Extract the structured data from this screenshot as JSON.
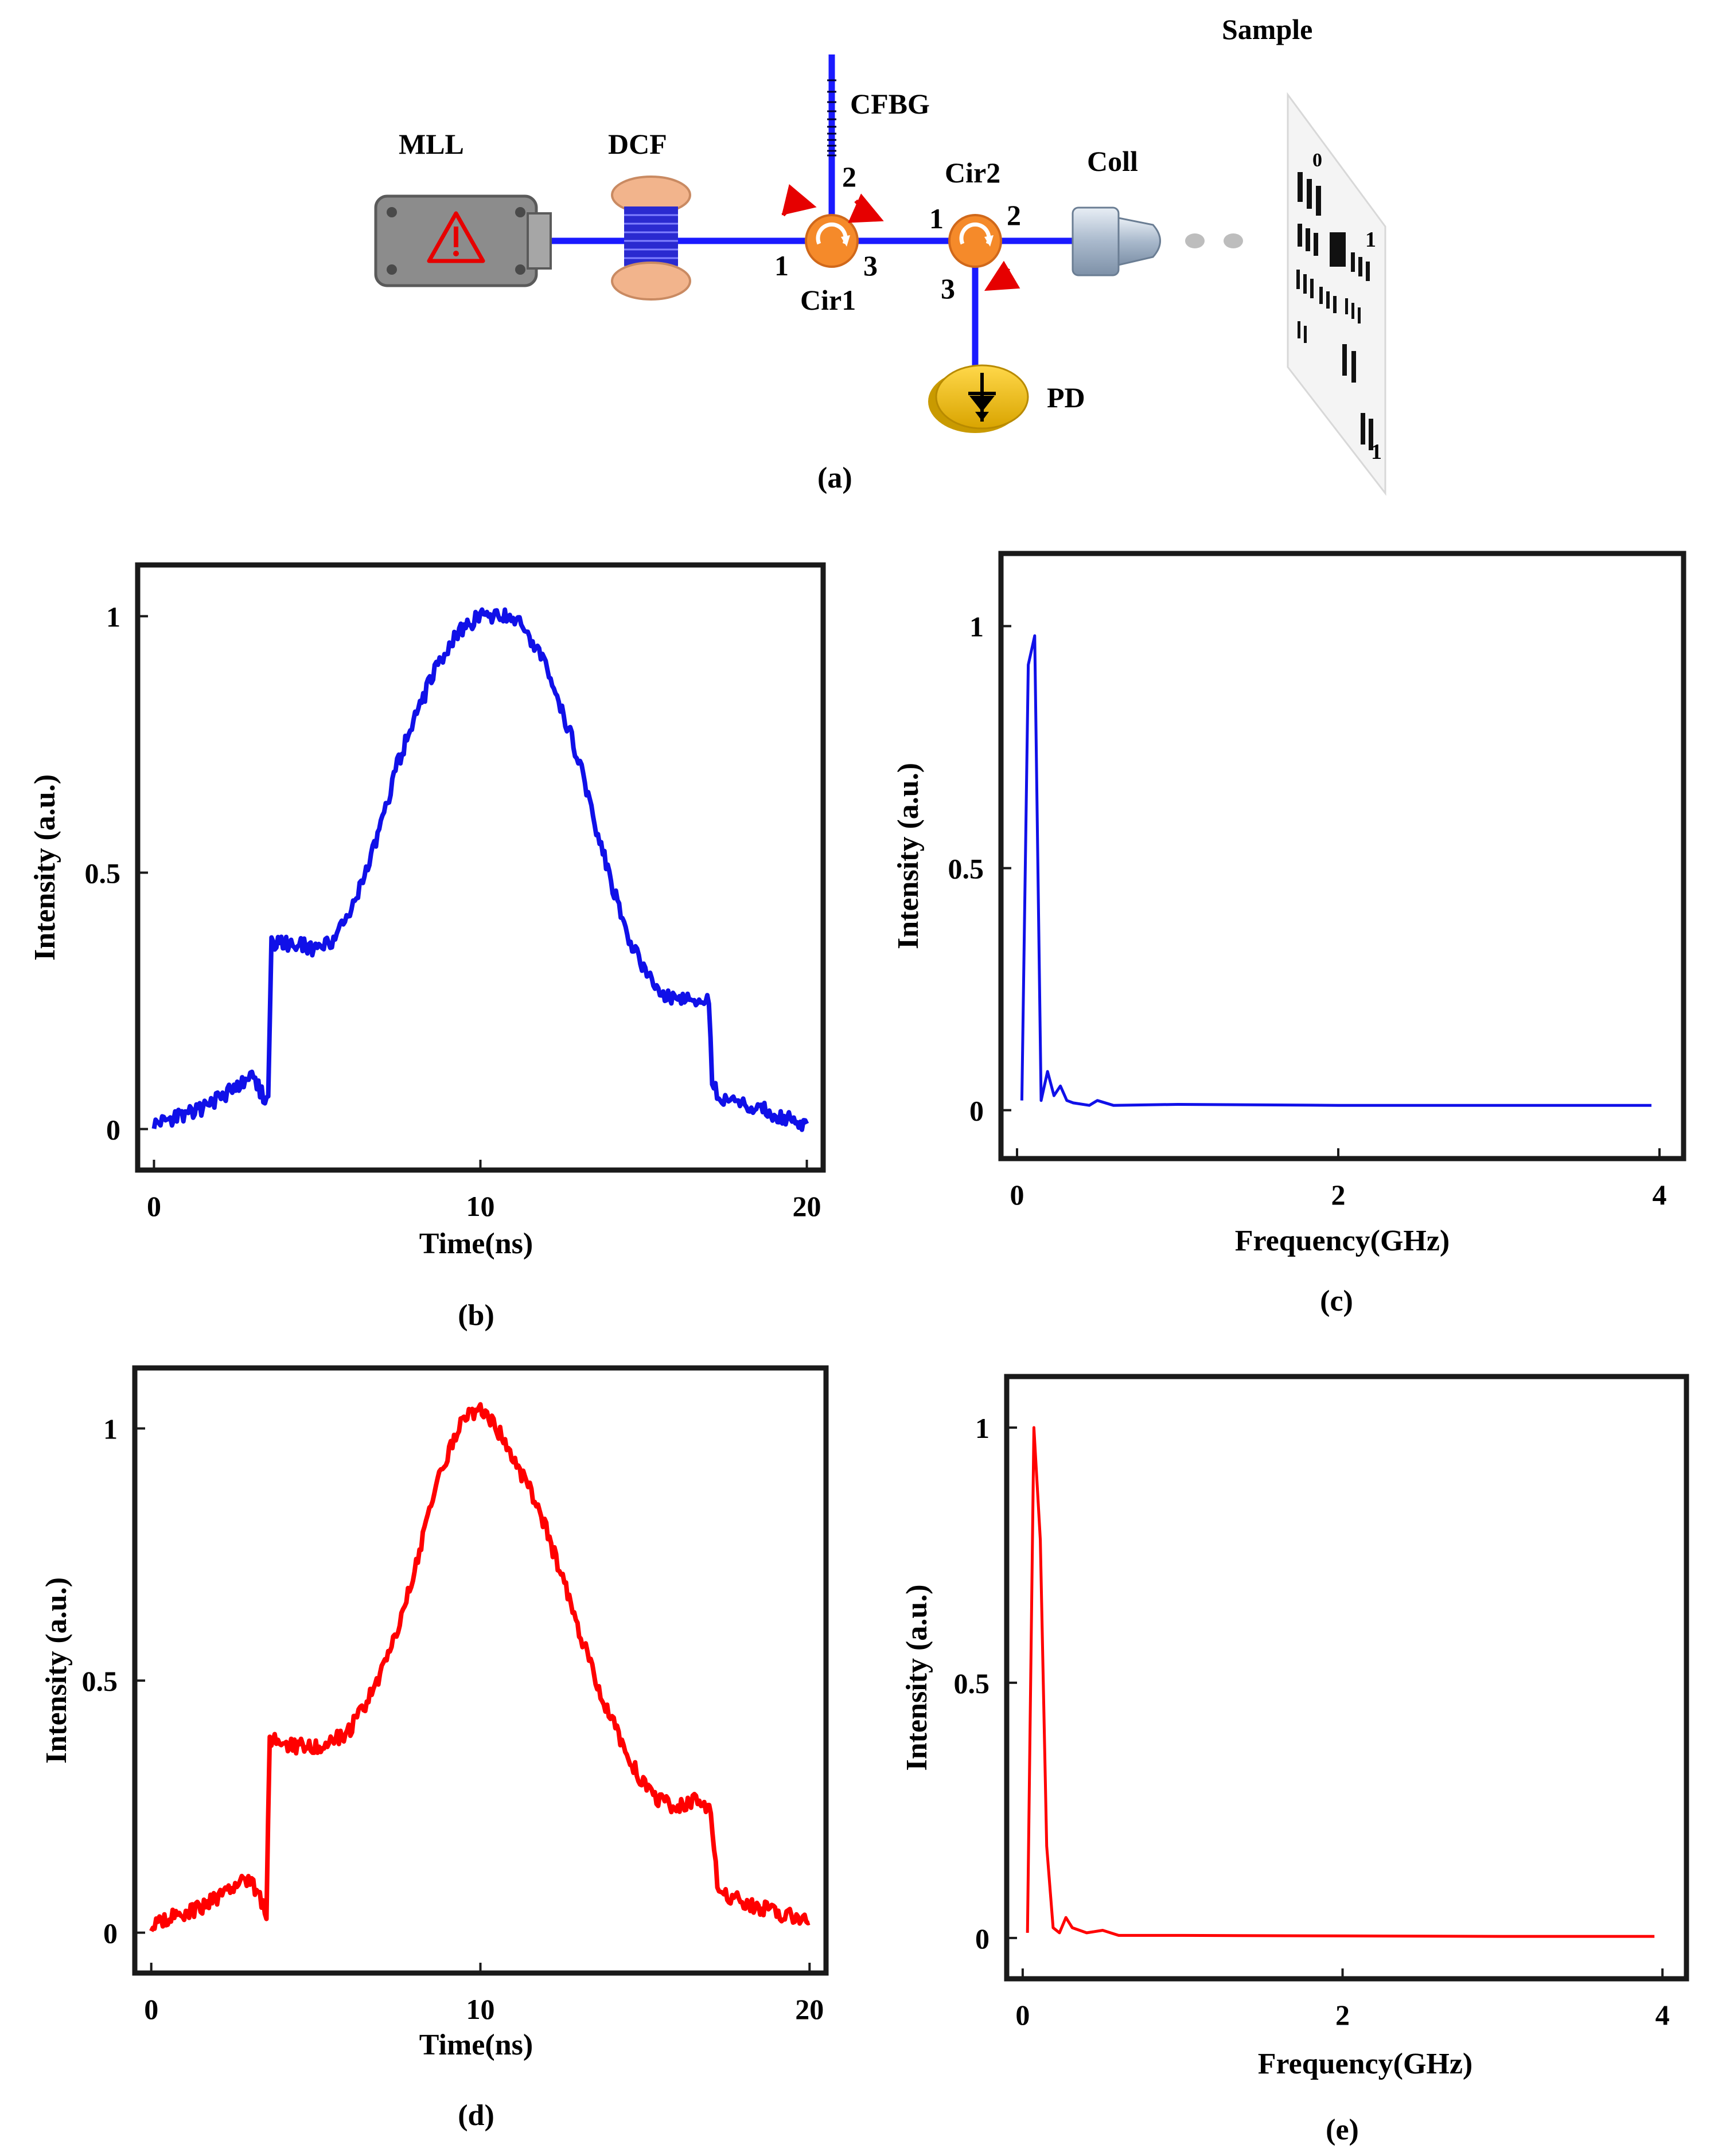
{
  "colors": {
    "fiber": "#1a1aff",
    "blue_trace": "#1010e8",
    "red_trace": "#ff0000",
    "arrow": "#e60000",
    "circulator": "#f58a2a",
    "detector": "#f2c300",
    "laser_body": "#8c8c8c",
    "dcf_flange": "#f2b48c",
    "collimator": "#b9c8d8"
  },
  "setup": {
    "caption": "(a)",
    "mll_label": "MLL",
    "dcf_label": "DCF",
    "cfbg_label": "CFBG",
    "cir1_label": "Cir1",
    "cir2_label": "Cir2",
    "coll_label": "Coll",
    "sample_label": "Sample",
    "pd_label": "PD",
    "cir1_ports": [
      "1",
      "2",
      "3"
    ],
    "cir2_ports": [
      "1",
      "2",
      "3"
    ],
    "target_digits": [
      "0",
      "1",
      "1"
    ],
    "icons": [
      "laser-warning-icon",
      "photodiode-icon",
      "circulator-icon"
    ]
  },
  "chart_data": [
    {
      "id": "b",
      "type": "line",
      "caption": "(b)",
      "xlabel": "Time(ns)",
      "ylabel": "Intensity (a.u.)",
      "xlim": [
        -0.5,
        20.5
      ],
      "ylim": [
        -0.08,
        1.1
      ],
      "xticks": [
        "0",
        "10",
        "20"
      ],
      "yticks": [
        "0",
        "0.5",
        "1"
      ],
      "color": "blue",
      "x": [
        0,
        0.5,
        1,
        1.5,
        2,
        2.5,
        3,
        3.5,
        3.6,
        3.8,
        4,
        4.5,
        5,
        5.5,
        6,
        6.5,
        7,
        7.5,
        8,
        8.5,
        9,
        9.5,
        10,
        10.5,
        11,
        11.5,
        12,
        12.5,
        13,
        13.5,
        14,
        14.5,
        15,
        15.5,
        16,
        16.5,
        17,
        17.1,
        17.3,
        17.5,
        18,
        18.5,
        19,
        19.5,
        20
      ],
      "y": [
        0.01,
        0.02,
        0.03,
        0.04,
        0.06,
        0.08,
        0.1,
        0.05,
        0.36,
        0.37,
        0.36,
        0.36,
        0.35,
        0.37,
        0.42,
        0.5,
        0.6,
        0.72,
        0.8,
        0.88,
        0.94,
        0.98,
        1.0,
        1.0,
        1.0,
        0.96,
        0.9,
        0.82,
        0.72,
        0.6,
        0.48,
        0.38,
        0.31,
        0.27,
        0.25,
        0.25,
        0.25,
        0.08,
        0.07,
        0.06,
        0.05,
        0.04,
        0.03,
        0.02,
        0.01
      ]
    },
    {
      "id": "c",
      "type": "line",
      "caption": "(c)",
      "xlabel": "Frequency(GHz)",
      "ylabel": "Intensity (a.u.)",
      "xlim": [
        -0.1,
        4.15
      ],
      "ylim": [
        -0.1,
        1.15
      ],
      "xticks": [
        "0",
        "2",
        "4"
      ],
      "yticks": [
        "0",
        "0.5",
        "1"
      ],
      "color": "blue",
      "x": [
        0.03,
        0.07,
        0.11,
        0.15,
        0.19,
        0.23,
        0.27,
        0.31,
        0.35,
        0.45,
        0.5,
        0.6,
        1.0,
        2.0,
        3.0,
        3.95
      ],
      "y": [
        0.02,
        0.92,
        0.98,
        0.02,
        0.08,
        0.03,
        0.05,
        0.02,
        0.015,
        0.01,
        0.02,
        0.01,
        0.012,
        0.01,
        0.01,
        0.01
      ]
    },
    {
      "id": "d",
      "type": "line",
      "caption": "(d)",
      "xlabel": "Time(ns)",
      "ylabel": "Intensity (a.u.)",
      "xlim": [
        -0.5,
        20.5
      ],
      "ylim": [
        -0.08,
        1.12
      ],
      "xticks": [
        "0",
        "10",
        "20"
      ],
      "yticks": [
        "0",
        "0.5",
        "1"
      ],
      "color": "red",
      "x": [
        0,
        0.5,
        1,
        1.5,
        2,
        2.5,
        3,
        3.5,
        3.6,
        3.8,
        4,
        4.5,
        5,
        5.5,
        6,
        6.5,
        7,
        7.5,
        8,
        8.5,
        9,
        9.5,
        10,
        10.5,
        11,
        11.5,
        12,
        12.5,
        13,
        13.5,
        14,
        14.5,
        15,
        15.5,
        16,
        16.5,
        17,
        17.2,
        17.4,
        17.6,
        18,
        18.5,
        19,
        19.5,
        20
      ],
      "y": [
        0.01,
        0.03,
        0.04,
        0.05,
        0.07,
        0.09,
        0.11,
        0.04,
        0.38,
        0.38,
        0.37,
        0.37,
        0.37,
        0.38,
        0.4,
        0.45,
        0.52,
        0.6,
        0.72,
        0.85,
        0.95,
        1.02,
        1.04,
        1.0,
        0.94,
        0.88,
        0.8,
        0.7,
        0.6,
        0.5,
        0.42,
        0.35,
        0.29,
        0.26,
        0.25,
        0.26,
        0.25,
        0.09,
        0.08,
        0.07,
        0.06,
        0.05,
        0.04,
        0.03,
        0.02
      ]
    },
    {
      "id": "e",
      "type": "line",
      "caption": "(e)",
      "xlabel": "Frequency(GHz)",
      "ylabel": "Intensity (a.u.)",
      "xlim": [
        -0.1,
        4.15
      ],
      "ylim": [
        -0.08,
        1.1
      ],
      "xticks": [
        "0",
        "2",
        "4"
      ],
      "yticks": [
        "0",
        "0.5",
        "1"
      ],
      "color": "red",
      "x": [
        0.03,
        0.07,
        0.11,
        0.15,
        0.19,
        0.23,
        0.27,
        0.31,
        0.4,
        0.5,
        0.6,
        1.0,
        2.0,
        3.0,
        3.95
      ],
      "y": [
        0.01,
        1.0,
        0.78,
        0.18,
        0.02,
        0.01,
        0.04,
        0.02,
        0.01,
        0.015,
        0.005,
        0.005,
        0.004,
        0.003,
        0.003
      ]
    }
  ]
}
